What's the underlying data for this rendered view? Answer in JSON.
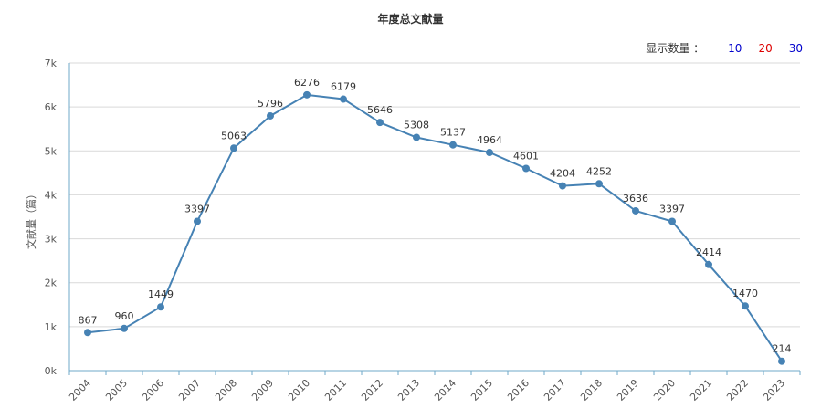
{
  "display_count": {
    "label": "显示数量 ：",
    "options": [
      {
        "label": "10",
        "color": "#0000cc"
      },
      {
        "label": "20",
        "color": "#dd0000"
      },
      {
        "label": "30",
        "color": "#0000cc"
      }
    ]
  },
  "chart_data": {
    "type": "line",
    "title": "年度总文献量",
    "xlabel": "",
    "ylabel": "文献量（篇）",
    "ylim": [
      0,
      7000
    ],
    "yticks": [
      "0k",
      "1k",
      "2k",
      "3k",
      "4k",
      "5k",
      "6k",
      "7k"
    ],
    "grid": true,
    "line_color": "#4682b4",
    "categories": [
      "2004",
      "2005",
      "2006",
      "2007",
      "2008",
      "2009",
      "2010",
      "2011",
      "2012",
      "2013",
      "2014",
      "2015",
      "2016",
      "2017",
      "2018",
      "2019",
      "2020",
      "2021",
      "2022",
      "2023"
    ],
    "values": [
      867,
      960,
      1449,
      3397,
      5063,
      5796,
      6276,
      6179,
      5646,
      5308,
      5137,
      4964,
      4601,
      4204,
      4252,
      3636,
      3397,
      2414,
      1470,
      214
    ]
  }
}
